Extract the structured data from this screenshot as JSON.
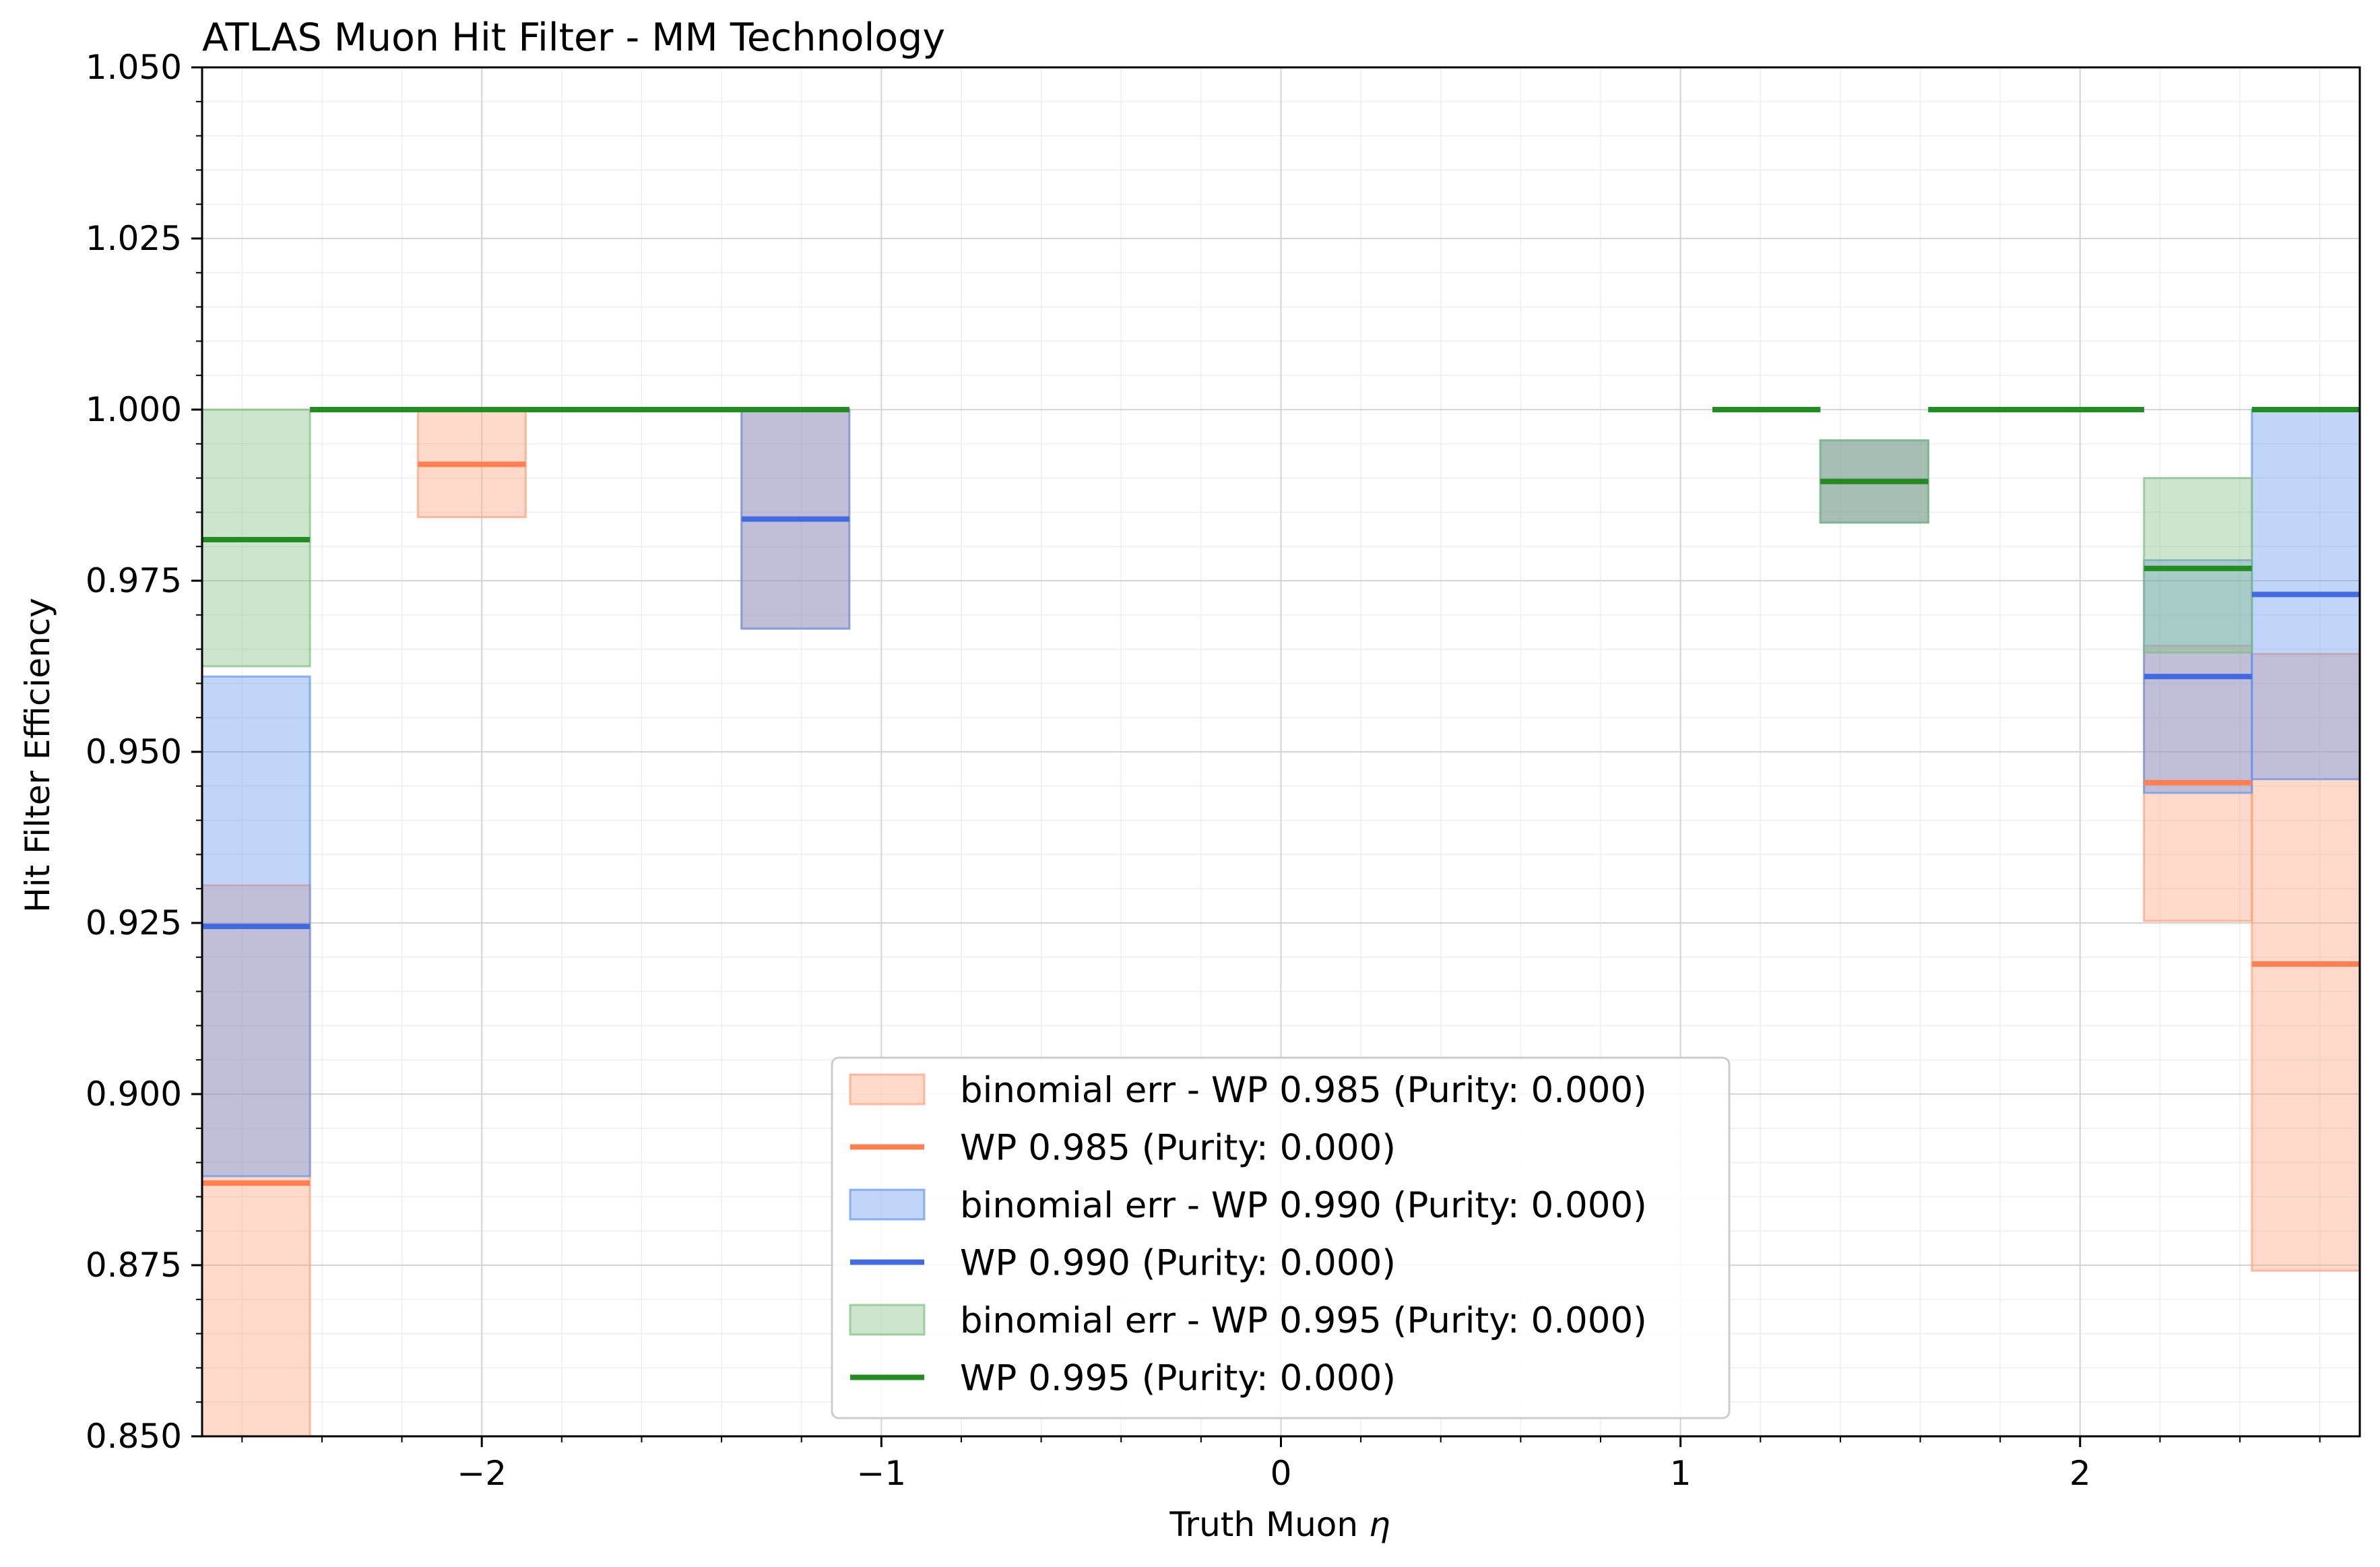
{
  "chart_data": {
    "type": "step",
    "title": "ATLAS Muon Hit Filter - MM Technology",
    "xlabel": "Truth Muon",
    "xlabel_symbol": "η",
    "ylabel": "Hit Filter Efficiency",
    "xlim": [
      -2.7,
      2.7
    ],
    "ylim": [
      0.85,
      1.05
    ],
    "xticks": [
      -2,
      -1,
      0,
      1,
      2
    ],
    "xtick_labels": [
      "−2",
      "−1",
      "0",
      "1",
      "2"
    ],
    "yticks": [
      0.85,
      0.875,
      0.9,
      0.925,
      0.95,
      0.975,
      1.0,
      1.025,
      1.05
    ],
    "ytick_labels": [
      "0.850",
      "0.875",
      "0.900",
      "0.925",
      "0.950",
      "0.975",
      "1.000",
      "1.025",
      "1.050"
    ],
    "grid": true,
    "legend_position": "lower center",
    "series": [
      {
        "name": "WP 0.985 (Purity: 0.000)",
        "band_name": "binomial err - WP 0.985 (Purity: 0.000)",
        "color": "#ff7f50",
        "band_color": "#ffa07a",
        "bins": [
          {
            "x0": -2.7,
            "x1": -2.43,
            "y": 0.887,
            "lo": 0.85,
            "hi": 0.9305
          },
          {
            "x0": -2.43,
            "x1": -2.16,
            "y": 1.0,
            "lo": 1.0,
            "hi": 1.0
          },
          {
            "x0": -2.16,
            "x1": -1.89,
            "y": 0.992,
            "lo": 0.9843,
            "hi": 1.0
          },
          {
            "x0": -1.89,
            "x1": -1.62,
            "y": 1.0,
            "lo": 1.0,
            "hi": 1.0
          },
          {
            "x0": -1.62,
            "x1": -1.35,
            "y": 1.0,
            "lo": 1.0,
            "hi": 1.0
          },
          {
            "x0": -1.35,
            "x1": -1.08,
            "y": 0.984,
            "lo": 0.968,
            "hi": 1.0
          },
          {
            "x0": 1.08,
            "x1": 1.35,
            "y": 1.0,
            "lo": 1.0,
            "hi": 1.0
          },
          {
            "x0": 1.35,
            "x1": 1.62,
            "y": 0.9895,
            "lo": 0.9835,
            "hi": 0.9955
          },
          {
            "x0": 1.62,
            "x1": 1.89,
            "y": 1.0,
            "lo": 1.0,
            "hi": 1.0
          },
          {
            "x0": 1.89,
            "x1": 2.16,
            "y": 1.0,
            "lo": 1.0,
            "hi": 1.0
          },
          {
            "x0": 2.16,
            "x1": 2.43,
            "y": 0.9455,
            "lo": 0.9253,
            "hi": 0.9655
          },
          {
            "x0": 2.43,
            "x1": 2.7,
            "y": 0.919,
            "lo": 0.8742,
            "hi": 0.9643
          }
        ]
      },
      {
        "name": "WP 0.990 (Purity: 0.000)",
        "band_name": "binomial err - WP 0.990 (Purity: 0.000)",
        "color": "#4169e1",
        "band_color": "#6495ed",
        "bins": [
          {
            "x0": -2.7,
            "x1": -2.43,
            "y": 0.9245,
            "lo": 0.888,
            "hi": 0.961
          },
          {
            "x0": -2.43,
            "x1": -2.16,
            "y": 1.0,
            "lo": 1.0,
            "hi": 1.0
          },
          {
            "x0": -2.16,
            "x1": -1.89,
            "y": 1.0,
            "lo": 1.0,
            "hi": 1.0
          },
          {
            "x0": -1.89,
            "x1": -1.62,
            "y": 1.0,
            "lo": 1.0,
            "hi": 1.0
          },
          {
            "x0": -1.62,
            "x1": -1.35,
            "y": 1.0,
            "lo": 1.0,
            "hi": 1.0
          },
          {
            "x0": -1.35,
            "x1": -1.08,
            "y": 0.984,
            "lo": 0.968,
            "hi": 1.0
          },
          {
            "x0": 1.08,
            "x1": 1.35,
            "y": 1.0,
            "lo": 1.0,
            "hi": 1.0
          },
          {
            "x0": 1.35,
            "x1": 1.62,
            "y": 0.9895,
            "lo": 0.9835,
            "hi": 0.9955
          },
          {
            "x0": 1.62,
            "x1": 1.89,
            "y": 1.0,
            "lo": 1.0,
            "hi": 1.0
          },
          {
            "x0": 1.89,
            "x1": 2.16,
            "y": 1.0,
            "lo": 1.0,
            "hi": 1.0
          },
          {
            "x0": 2.16,
            "x1": 2.43,
            "y": 0.961,
            "lo": 0.944,
            "hi": 0.978
          },
          {
            "x0": 2.43,
            "x1": 2.7,
            "y": 0.973,
            "lo": 0.946,
            "hi": 1.0
          }
        ]
      },
      {
        "name": "WP 0.995 (Purity: 0.000)",
        "band_name": "binomial err - WP 0.995 (Purity: 0.000)",
        "color": "#228b22",
        "band_color": "#7fbf7f",
        "bins": [
          {
            "x0": -2.7,
            "x1": -2.43,
            "y": 0.981,
            "lo": 0.9625,
            "hi": 1.0
          },
          {
            "x0": -2.43,
            "x1": -2.16,
            "y": 1.0,
            "lo": 1.0,
            "hi": 1.0
          },
          {
            "x0": -2.16,
            "x1": -1.89,
            "y": 1.0,
            "lo": 1.0,
            "hi": 1.0
          },
          {
            "x0": -1.89,
            "x1": -1.62,
            "y": 1.0,
            "lo": 1.0,
            "hi": 1.0
          },
          {
            "x0": -1.62,
            "x1": -1.35,
            "y": 1.0,
            "lo": 1.0,
            "hi": 1.0
          },
          {
            "x0": -1.35,
            "x1": -1.08,
            "y": 1.0,
            "lo": 1.0,
            "hi": 1.0
          },
          {
            "x0": 1.08,
            "x1": 1.35,
            "y": 1.0,
            "lo": 1.0,
            "hi": 1.0
          },
          {
            "x0": 1.35,
            "x1": 1.62,
            "y": 0.9895,
            "lo": 0.9835,
            "hi": 0.9955
          },
          {
            "x0": 1.62,
            "x1": 1.89,
            "y": 1.0,
            "lo": 1.0,
            "hi": 1.0
          },
          {
            "x0": 1.89,
            "x1": 2.16,
            "y": 1.0,
            "lo": 1.0,
            "hi": 1.0
          },
          {
            "x0": 2.16,
            "x1": 2.43,
            "y": 0.9768,
            "lo": 0.9645,
            "hi": 0.99
          },
          {
            "x0": 2.43,
            "x1": 2.7,
            "y": 1.0,
            "lo": 1.0,
            "hi": 1.0
          }
        ]
      }
    ],
    "legend": [
      {
        "kind": "band",
        "series": 0,
        "label": "binomial err - WP 0.985 (Purity: 0.000)"
      },
      {
        "kind": "line",
        "series": 0,
        "label": "WP 0.985 (Purity: 0.000)"
      },
      {
        "kind": "band",
        "series": 1,
        "label": "binomial err - WP 0.990 (Purity: 0.000)"
      },
      {
        "kind": "line",
        "series": 1,
        "label": "WP 0.990 (Purity: 0.000)"
      },
      {
        "kind": "band",
        "series": 2,
        "label": "binomial err - WP 0.995 (Purity: 0.000)"
      },
      {
        "kind": "line",
        "series": 2,
        "label": "WP 0.995 (Purity: 0.000)"
      }
    ]
  }
}
